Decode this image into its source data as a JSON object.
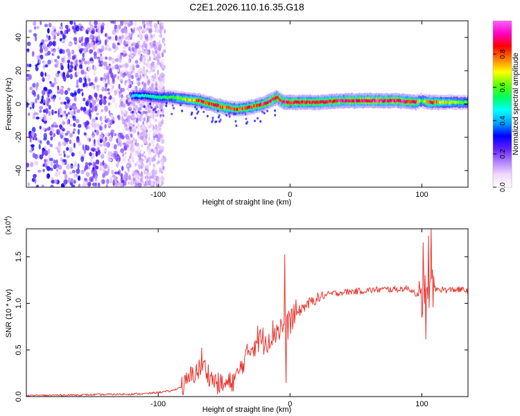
{
  "title": "C2E1.2026.110.16.35.G18",
  "chart_data": [
    {
      "type": "heatmap",
      "name": "spectrogram",
      "xlabel": "Height of straight line (km)",
      "ylabel": "Frequency (Hz)",
      "xlim": [
        -200,
        135
      ],
      "ylim": [
        -50,
        50
      ],
      "xticks": [
        -100,
        0,
        100
      ],
      "xtick_labels": [
        "-100",
        "0",
        "100"
      ],
      "yticks": [
        -40,
        -20,
        0,
        20,
        40
      ],
      "ytick_labels": [
        "-40",
        "-20",
        "0",
        "20",
        "40"
      ],
      "noise_region_km": [
        -200,
        -95
      ],
      "signal_track": {
        "x": [
          -120,
          -110,
          -100,
          -90,
          -80,
          -70,
          -60,
          -50,
          -40,
          -30,
          -20,
          -15,
          -10,
          -5,
          0,
          20,
          40,
          60,
          80,
          95,
          100,
          105,
          120,
          135
        ],
        "y": [
          5,
          5,
          4,
          4,
          3,
          2,
          0,
          -2,
          -3,
          -2,
          0,
          2,
          4,
          1,
          1,
          1,
          2,
          2,
          2,
          1,
          2,
          1,
          1,
          1
        ],
        "peak_amplitude": [
          0.45,
          0.5,
          0.55,
          0.6,
          0.7,
          0.85,
          0.9,
          0.85,
          0.8,
          0.85,
          0.9,
          0.95,
          0.9,
          0.95,
          0.9,
          0.9,
          0.95,
          0.95,
          0.95,
          0.9,
          0.6,
          0.9,
          0.7,
          0.6
        ]
      },
      "colorbar": {
        "label": "Normalized spectral amplitude",
        "ticks": [
          0.0,
          0.2,
          0.4,
          0.6,
          0.8
        ],
        "tick_labels": [
          "0.0",
          "0.2",
          "0.4",
          "0.6",
          "0.8"
        ],
        "range": [
          0,
          1
        ],
        "colors": [
          "#ffffff",
          "#f0d8ff",
          "#b080ff",
          "#6020ff",
          "#0000ff",
          "#00a0ff",
          "#00ffff",
          "#00ff60",
          "#60ff00",
          "#ffff00",
          "#ff8000",
          "#ff0000",
          "#ff00c0",
          "#ff60ff"
        ]
      }
    },
    {
      "type": "line",
      "name": "snr",
      "xlabel": "Height of straight line (km)",
      "ylabel": "SNR (10 * v/v)",
      "scale_label": "(x10",
      "scale_exponent": "4",
      "xlim": [
        -200,
        135
      ],
      "ylim": [
        0,
        1.8
      ],
      "xticks": [
        -100,
        0,
        100
      ],
      "xtick_labels": [
        "-100",
        "0",
        "100"
      ],
      "yticks": [
        0,
        0.5,
        1.0,
        1.5
      ],
      "ytick_labels": [
        "0.0",
        "0.5",
        "1.0",
        "1.5"
      ],
      "color": "#e8332c",
      "series": {
        "x": [
          -200,
          -150,
          -110,
          -90,
          -80,
          -75,
          -70,
          -65,
          -60,
          -55,
          -50,
          -45,
          -40,
          -35,
          -30,
          -25,
          -20,
          -15,
          -10,
          -5,
          -3,
          0,
          10,
          20,
          30,
          40,
          50,
          60,
          70,
          80,
          90,
          95,
          100,
          102,
          104,
          106,
          108,
          110,
          115,
          120,
          125,
          135
        ],
        "y": [
          0.01,
          0.02,
          0.03,
          0.06,
          0.12,
          0.22,
          0.28,
          0.32,
          0.2,
          0.14,
          0.12,
          0.15,
          0.22,
          0.38,
          0.52,
          0.62,
          0.6,
          0.65,
          0.72,
          0.75,
          0.7,
          0.82,
          0.96,
          1.05,
          1.1,
          1.12,
          1.13,
          1.14,
          1.15,
          1.15,
          1.16,
          1.12,
          1.0,
          1.2,
          1.0,
          1.15,
          1.18,
          1.15,
          1.15,
          1.14,
          1.15,
          1.14
        ]
      },
      "spikes": [
        {
          "x": -67,
          "y": 0.52
        },
        {
          "x": -4,
          "y": 1.52
        },
        {
          "x": -3,
          "y": 0.15
        },
        {
          "x": 101,
          "y": 1.65
        },
        {
          "x": 103,
          "y": 0.62
        },
        {
          "x": 105,
          "y": 1.72
        },
        {
          "x": 107,
          "y": 1.8
        }
      ]
    }
  ]
}
